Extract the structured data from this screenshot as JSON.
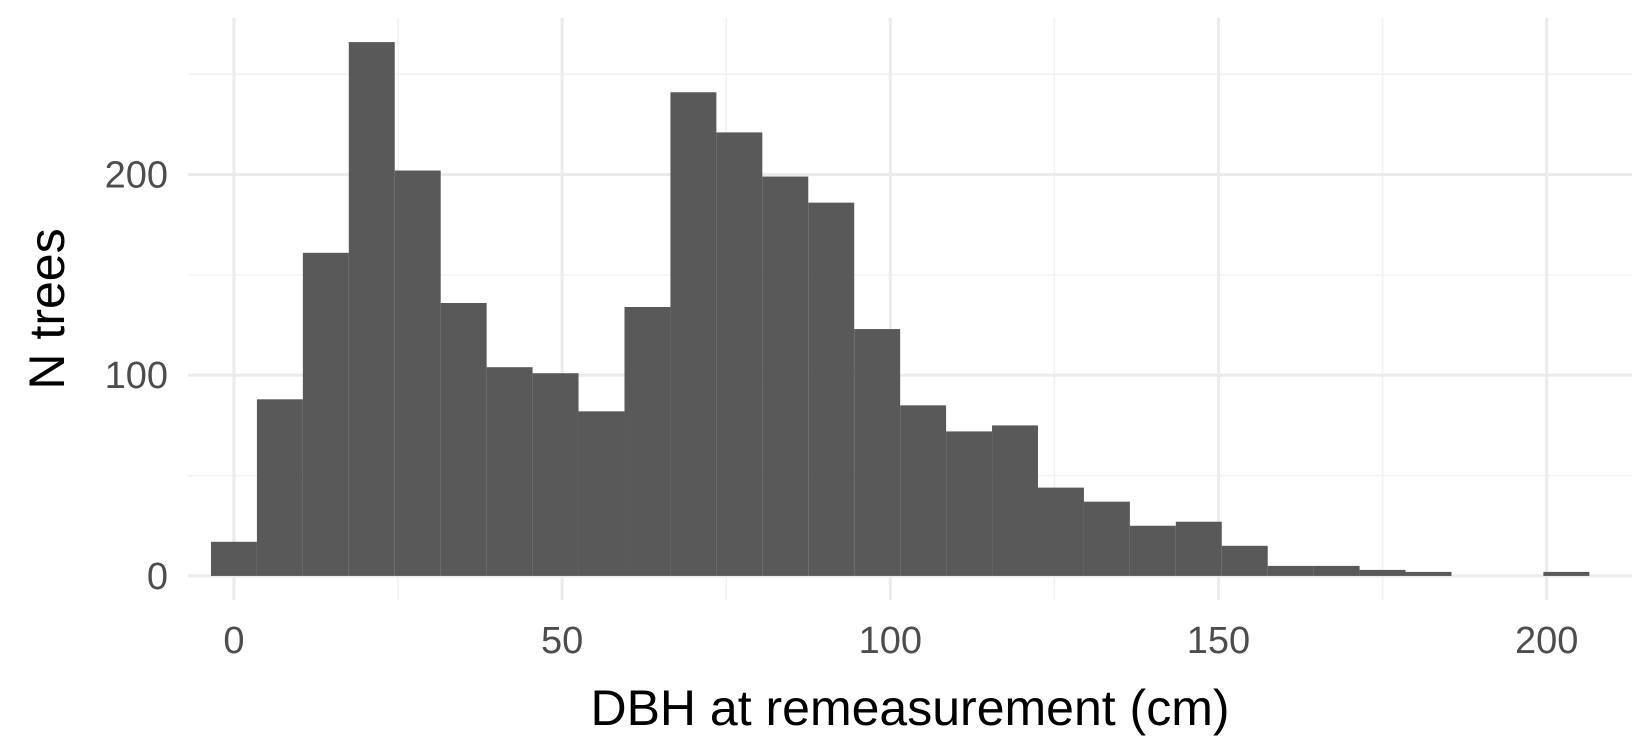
{
  "chart_data": {
    "type": "bar",
    "subtype": "histogram",
    "title": "",
    "xlabel": "DBH at remeasurement (cm)",
    "ylabel": "N trees",
    "xlim": [
      -7,
      213
    ],
    "ylim": [
      -12,
      278
    ],
    "x_ticks": [
      0,
      50,
      100,
      150,
      200
    ],
    "y_ticks": [
      0,
      100,
      200
    ],
    "x_tick_labels": [
      "0",
      "50",
      "100",
      "150",
      "200"
    ],
    "y_tick_labels": [
      "0",
      "100",
      "200"
    ],
    "grid": true,
    "legend": "none",
    "bar_color": "#595959",
    "bins": [
      {
        "start": -3.5,
        "end": 3.5,
        "count": 17
      },
      {
        "start": 3.5,
        "end": 10.5,
        "count": 88
      },
      {
        "start": 10.5,
        "end": 17.5,
        "count": 161
      },
      {
        "start": 17.5,
        "end": 24.5,
        "count": 266
      },
      {
        "start": 24.5,
        "end": 31.5,
        "count": 202
      },
      {
        "start": 31.5,
        "end": 38.5,
        "count": 136
      },
      {
        "start": 38.5,
        "end": 45.5,
        "count": 104
      },
      {
        "start": 45.5,
        "end": 52.5,
        "count": 101
      },
      {
        "start": 52.5,
        "end": 59.5,
        "count": 82
      },
      {
        "start": 59.5,
        "end": 66.5,
        "count": 134
      },
      {
        "start": 66.5,
        "end": 73.5,
        "count": 241
      },
      {
        "start": 73.5,
        "end": 80.5,
        "count": 221
      },
      {
        "start": 80.5,
        "end": 87.5,
        "count": 199
      },
      {
        "start": 87.5,
        "end": 94.5,
        "count": 186
      },
      {
        "start": 94.5,
        "end": 101.5,
        "count": 123
      },
      {
        "start": 101.5,
        "end": 108.5,
        "count": 85
      },
      {
        "start": 108.5,
        "end": 115.5,
        "count": 72
      },
      {
        "start": 115.5,
        "end": 122.5,
        "count": 75
      },
      {
        "start": 122.5,
        "end": 129.5,
        "count": 44
      },
      {
        "start": 129.5,
        "end": 136.5,
        "count": 37
      },
      {
        "start": 136.5,
        "end": 143.5,
        "count": 25
      },
      {
        "start": 143.5,
        "end": 150.5,
        "count": 27
      },
      {
        "start": 150.5,
        "end": 157.5,
        "count": 15
      },
      {
        "start": 157.5,
        "end": 164.5,
        "count": 5
      },
      {
        "start": 164.5,
        "end": 171.5,
        "count": 5
      },
      {
        "start": 171.5,
        "end": 178.5,
        "count": 3
      },
      {
        "start": 178.5,
        "end": 185.5,
        "count": 2
      },
      {
        "start": 185.5,
        "end": 192.5,
        "count": 0
      },
      {
        "start": 192.5,
        "end": 199.5,
        "count": 0
      },
      {
        "start": 199.5,
        "end": 206.5,
        "count": 2
      }
    ]
  }
}
